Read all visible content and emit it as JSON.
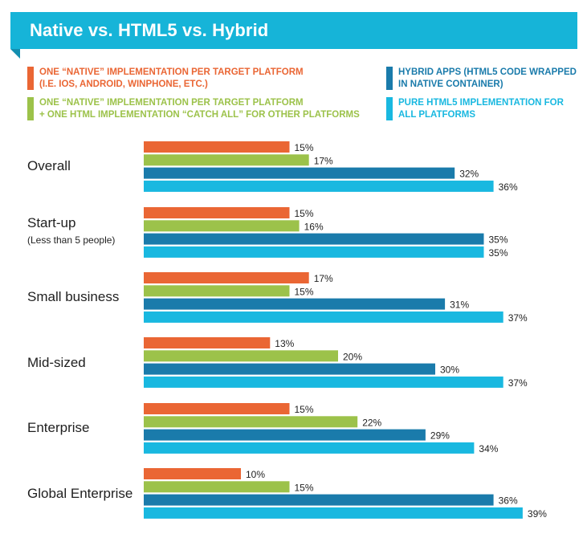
{
  "title": "Native vs. HTML5 vs. Hybrid",
  "legend": [
    {
      "label": "ONE “NATIVE” IMPLEMENTATION PER TARGET PLATFORM\n(I.E. IOS, ANDROID, WINPHONE, ETC.)",
      "color": "#ea6634"
    },
    {
      "label": "ONE “NATIVE” IMPLEMENTATION PER TARGET PLATFORM\n+ ONE HTML IMPLEMENTATION “CATCH ALL” FOR OTHER PLATFORMS",
      "color": "#9cc24a"
    },
    {
      "label": "HYBRID APPS (HTML5 CODE WRAPPED\nIN NATIVE CONTAINER)",
      "color": "#1a7bab"
    },
    {
      "label": "PURE HTML5 IMPLEMENTATION FOR\nALL PLATFORMS",
      "color": "#19b8e0"
    }
  ],
  "chart_data": {
    "type": "bar",
    "orientation": "horizontal",
    "title": "Native vs. HTML5 vs. Hybrid",
    "categories": [
      "Overall",
      "Start-up",
      "Small business",
      "Mid-sized",
      "Enterprise",
      "Global Enterprise"
    ],
    "category_sublabels": [
      "",
      "(Less than 5 people)",
      "",
      "",
      "",
      ""
    ],
    "series": [
      {
        "name": "ONE “NATIVE” IMPLEMENTATION PER TARGET PLATFORM (I.E. IOS, ANDROID, WINPHONE, ETC.)",
        "values": [
          15,
          15,
          17,
          13,
          15,
          10
        ],
        "color": "#ea6634"
      },
      {
        "name": "ONE “NATIVE” IMPLEMENTATION PER TARGET PLATFORM + ONE HTML IMPLEMENTATION “CATCH ALL” FOR OTHER PLATFORMS",
        "values": [
          17,
          16,
          15,
          20,
          22,
          15
        ],
        "color": "#9cc24a"
      },
      {
        "name": "HYBRID APPS (HTML5 CODE WRAPPED IN NATIVE CONTAINER)",
        "values": [
          32,
          35,
          31,
          30,
          29,
          36
        ],
        "color": "#1a7bab"
      },
      {
        "name": "PURE HTML5 IMPLEMENTATION FOR ALL PLATFORMS",
        "values": [
          36,
          35,
          37,
          37,
          34,
          39
        ],
        "color": "#19b8e0"
      }
    ],
    "value_suffix": "%",
    "xlim": [
      0,
      40
    ],
    "grid": false,
    "legend_position": "top",
    "xlabel": "",
    "ylabel": ""
  }
}
